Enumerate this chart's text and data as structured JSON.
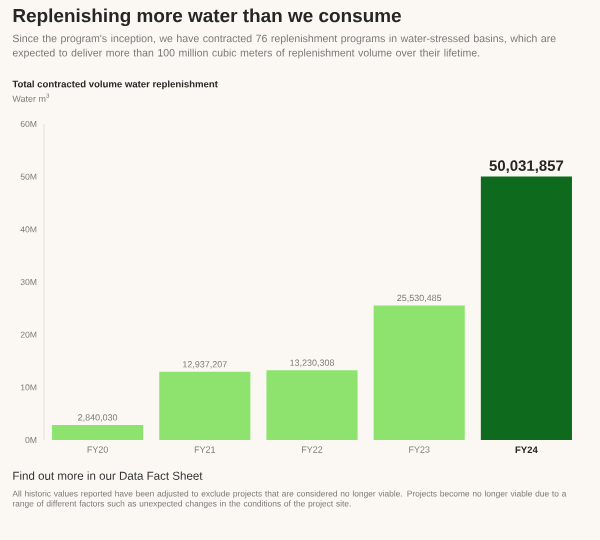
{
  "chart_data": {
    "type": "bar",
    "title": "Replenishing more water than we consume",
    "subtitle": "Since the program's inception, we have contracted 76 replenishment programs in water-stressed basins, which are expected to deliver more than 100 million cubic meters of replenishment volume over their lifetime.",
    "xlabel": "Total contracted volume water replenishment",
    "ylabel": "Water m$^{3}$",
    "categories": [
      "FY20",
      "FY21",
      "FY22",
      "FY23",
      "FY24"
    ],
    "values": [
      2840030,
      12937207,
      13230308,
      25530485,
      50031857
    ],
    "value_labels": [
      "2,840,030",
      "12,937,207",
      "13,230,308",
      "25,530,485",
      "50,031,857"
    ],
    "colors": [
      "#8ee36f",
      "#8ee36f",
      "#8ee36f",
      "#8ee36f",
      "#0e6b1e"
    ],
    "ylim": [
      0,
      60000000
    ],
    "yticks": [
      {
        "value": 0,
        "label": "0M"
      },
      {
        "value": 10000000,
        "label": "10M"
      },
      {
        "value": 20000000,
        "label": "20M"
      },
      {
        "value": 30000000,
        "label": "30M"
      },
      {
        "value": 40000000,
        "label": "40M"
      },
      {
        "value": 50000000,
        "label": "50M"
      },
      {
        "value": 60000000,
        "label": "60M"
      }
    ],
    "annotations": [
      "Find out more in our Data Fact Sheet",
      "All historic values reported have been adjusted to exclude projects that are considered no longer viable. Projects become no longer viable due to a range of different factors such as unexpected changes in the conditions of the project site."
    ]
  }
}
